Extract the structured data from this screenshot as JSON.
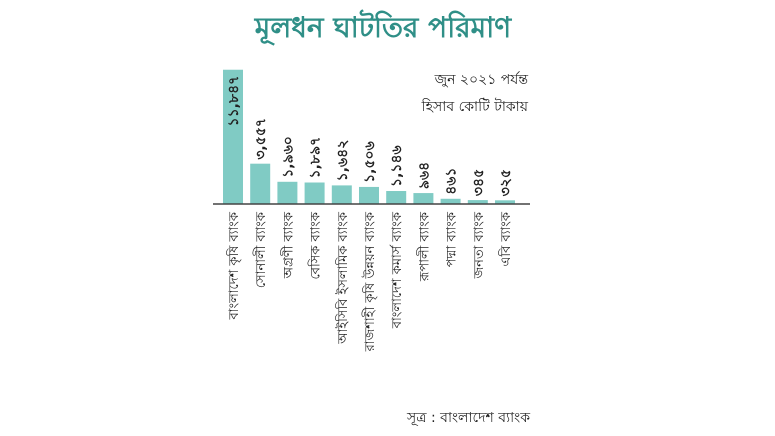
{
  "title": "মূলধন ঘাটতির পরিমাণ",
  "note_line1": "জুন ২০২১ পর্যন্ত",
  "note_line2": "হিসাব কোটি টাকায়",
  "source": "সূত্র : বাংলাদেশ ব্যাংক",
  "colors": {
    "bar": "#80cbc4",
    "title": "#2f8f87",
    "axis": "#444444"
  },
  "chart_data": {
    "type": "bar",
    "title": "মূলধন ঘাটতির পরিমাণ",
    "xlabel": "",
    "ylabel": "",
    "categories": [
      "বাংলাদেশ কৃষি ব্যাংক",
      "সোনালী ব্যাংক",
      "অগ্রণী ব্যাংক",
      "বেসিক ব্যাংক",
      "আইসিবি ইসলামিক ব্যাংক",
      "রাজশাহী কৃষি উন্নয়ন ব্যাংক",
      "বাংলাদেশ কমার্স ব্যাংক",
      "রূপালী ব্যাংক",
      "পদ্মা ব্যাংক",
      "জনতা ব্যাংক",
      "এবি ব্যাংক"
    ],
    "values": [
      11847,
      3557,
      1960,
      1897,
      1642,
      1506,
      1146,
      964,
      461,
      345,
      325
    ],
    "value_labels": [
      "১১,৮৪৭",
      "৩,৫৫৭",
      "১,৯৬০",
      "১,৮৯৭",
      "১,৬৪২",
      "১,৫০৬",
      "১,১৪৬",
      "৯৬৪",
      "৪৬১",
      "৩৪৫",
      "৩২৫"
    ],
    "ylim": [
      0,
      12000
    ],
    "grid": false,
    "legend": "none"
  }
}
